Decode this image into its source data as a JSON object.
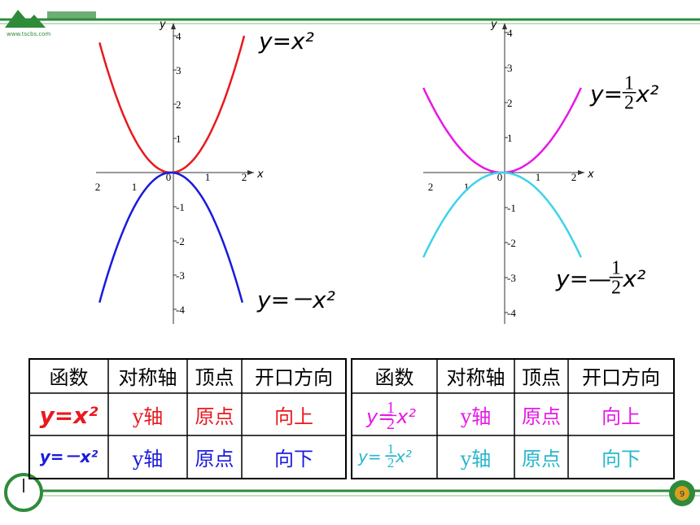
{
  "logo_text": "www.tscbs.com",
  "plots": [
    {
      "axis_x": "x",
      "axis_y": "y",
      "x_tick_labels": [
        "2",
        "1",
        "0",
        "1",
        "2"
      ],
      "y_tick_labels": [
        "4",
        "3",
        "2",
        "1",
        "-1",
        "-2",
        "-3",
        "-4"
      ],
      "labels": [
        {
          "text": "y=x²"
        },
        {
          "text": "y=－x²"
        }
      ]
    },
    {
      "axis_x": "x",
      "axis_y": "y",
      "x_tick_labels": [
        "2",
        "1",
        "0",
        "1",
        "2"
      ],
      "y_tick_labels": [
        "4",
        "3",
        "2",
        "1",
        "-1",
        "-2",
        "-3",
        "-4"
      ],
      "labels": [
        {
          "prefix": "y=",
          "num": "1",
          "den": "2",
          "suffix": "x²"
        },
        {
          "prefix": "y=—",
          "num": "1",
          "den": "2",
          "suffix": "x²"
        }
      ]
    }
  ],
  "tables": [
    {
      "header": [
        "函数",
        "对称轴",
        "顶点",
        "开口方向"
      ],
      "rows": [
        [
          {
            "text": "y=x²"
          },
          "y轴",
          "原点",
          "向上"
        ],
        [
          {
            "text": "y=－x²"
          },
          "y轴",
          "原点",
          "向下"
        ]
      ]
    },
    {
      "header": [
        "函数",
        "对称轴",
        "顶点",
        "开口方向"
      ],
      "rows": [
        [
          {
            "prefix": "y=",
            "num": "1",
            "den": "2",
            "suffix": "x²"
          },
          "y轴",
          "原点",
          "向上"
        ],
        [
          {
            "prefix": "y=－",
            "num": "1",
            "den": "2",
            "suffix": "x²"
          },
          "y轴",
          "原点",
          "向下"
        ]
      ]
    }
  ],
  "page_number": "9"
}
